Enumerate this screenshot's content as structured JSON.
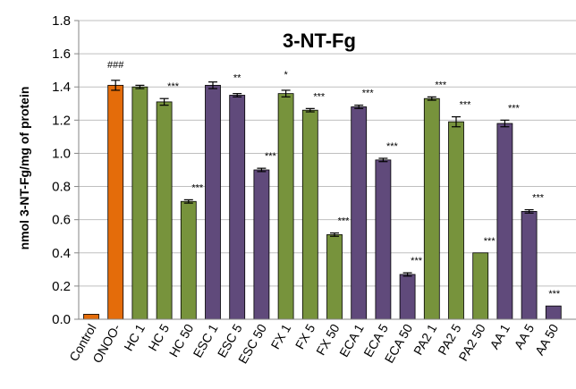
{
  "chart_data": {
    "type": "bar",
    "title": "3-NT-Fg",
    "ylabel": "nmol 3-NT-Fg/mg of protein",
    "xlabel": "",
    "ylim": [
      0,
      1.8
    ],
    "yticks": [
      "0.0",
      "0.2",
      "0.4",
      "0.6",
      "0.8",
      "1.0",
      "1.2",
      "1.4",
      "1.6",
      "1.8"
    ],
    "grid": true,
    "categories": [
      "Control",
      "ONOO-",
      "HC 1",
      "HC 5",
      "HC 50",
      "ESC 1",
      "ESC 5",
      "ESC 50",
      "FX 1",
      "FX 5",
      "FX 50",
      "ECA 1",
      "ECA 5",
      "ECA 50",
      "PA2 1",
      "PA2 5",
      "PA2 50",
      "AA 1",
      "AA 5",
      "AA 50"
    ],
    "values": [
      0.03,
      1.41,
      1.4,
      1.31,
      0.71,
      1.41,
      1.35,
      0.9,
      1.36,
      1.26,
      0.51,
      1.28,
      0.96,
      0.27,
      1.33,
      1.19,
      0.4,
      1.18,
      0.65,
      0.08
    ],
    "errors": [
      0.0,
      0.03,
      0.01,
      0.02,
      0.01,
      0.02,
      0.01,
      0.01,
      0.02,
      0.01,
      0.01,
      0.01,
      0.01,
      0.01,
      0.01,
      0.03,
      0.0,
      0.02,
      0.01,
      0.0
    ],
    "annotations": [
      "",
      "###",
      "",
      "***",
      "***",
      "",
      "**",
      "***",
      "*",
      "***",
      "***",
      "***",
      "***",
      "***",
      "***",
      "***",
      "***",
      "***",
      "***",
      "***"
    ],
    "bar_colors": [
      "#E46C0A",
      "#E46C0A",
      "#77933C",
      "#77933C",
      "#77933C",
      "#604A7B",
      "#604A7B",
      "#604A7B",
      "#77933C",
      "#77933C",
      "#77933C",
      "#604A7B",
      "#604A7B",
      "#604A7B",
      "#77933C",
      "#77933C",
      "#77933C",
      "#604A7B",
      "#604A7B",
      "#604A7B"
    ],
    "colors": {
      "control": "#E46C0A",
      "green": "#77933C",
      "purple": "#604A7B",
      "grid": "#BFBFBF",
      "axis": "#868686",
      "error": "#000000"
    }
  }
}
